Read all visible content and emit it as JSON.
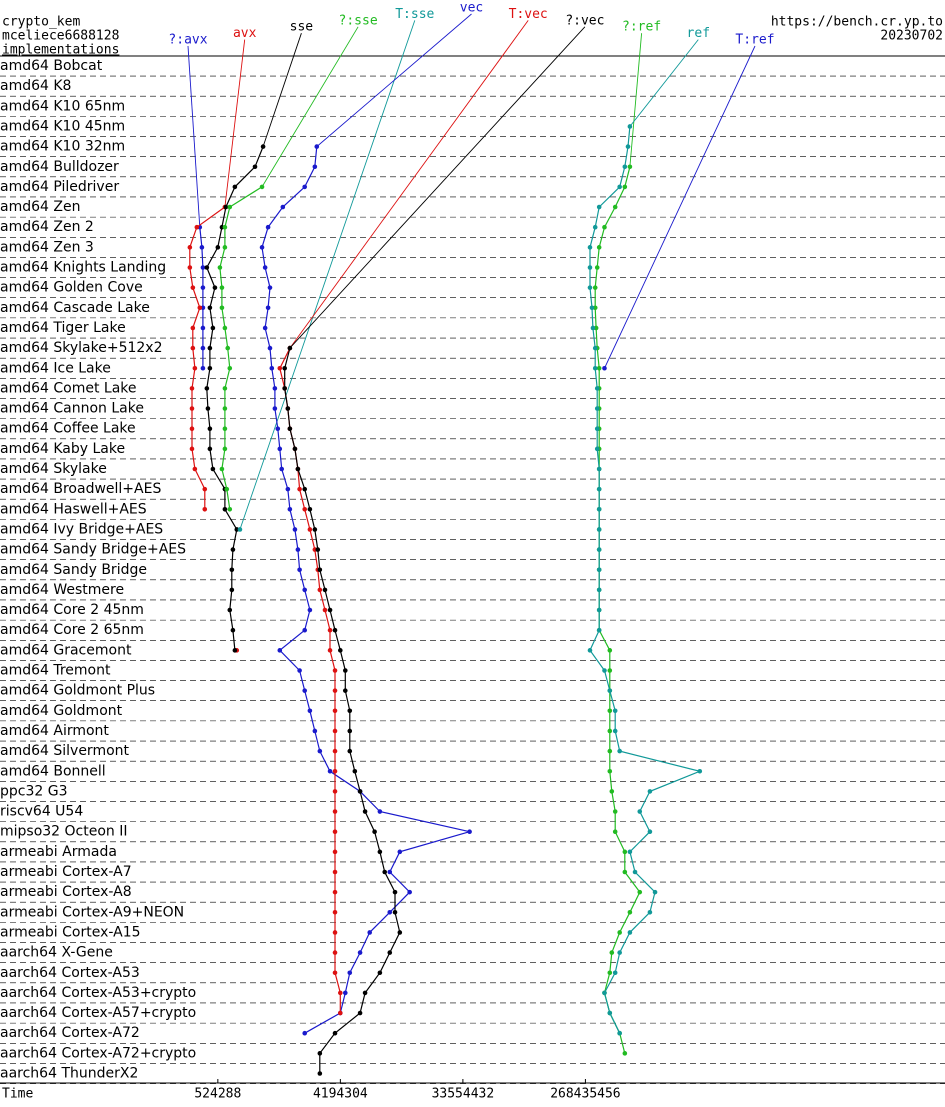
{
  "header": {
    "primitive": "crypto_kem",
    "function": "mceliece6688128",
    "subtitle": "implementations",
    "site": "https://bench.cr.yp.to",
    "date": "20230702"
  },
  "chart_data": {
    "type": "dotline",
    "x_label": "Time",
    "log_x": true,
    "xlim": [
      13000,
      120000000000
    ],
    "xticks": [
      524288,
      4194304,
      33554432,
      268435456
    ],
    "categories": [
      "amd64 Bobcat",
      "amd64 K8",
      "amd64 K10 65nm",
      "amd64 K10 45nm",
      "amd64 K10 32nm",
      "amd64 Bulldozer",
      "amd64 Piledriver",
      "amd64 Zen",
      "amd64 Zen 2",
      "amd64 Zen 3",
      "amd64 Knights Landing",
      "amd64 Golden Cove",
      "amd64 Cascade Lake",
      "amd64 Tiger Lake",
      "amd64 Skylake+512x2",
      "amd64 Ice Lake",
      "amd64 Comet Lake",
      "amd64 Cannon Lake",
      "amd64 Coffee Lake",
      "amd64 Kaby Lake",
      "amd64 Skylake",
      "amd64 Broadwell+AES",
      "amd64 Haswell+AES",
      "amd64 Ivy Bridge+AES",
      "amd64 Sandy Bridge+AES",
      "amd64 Sandy Bridge",
      "amd64 Westmere",
      "amd64 Core 2 45nm",
      "amd64 Core 2 65nm",
      "amd64 Gracemont",
      "amd64 Tremont",
      "amd64 Goldmont Plus",
      "amd64 Goldmont",
      "amd64 Airmont",
      "amd64 Silvermont",
      "amd64 Bonnell",
      "ppc32 G3",
      "riscv64 U54",
      "mipso32 Octeon II",
      "armeabi Armada",
      "armeabi Cortex-A7",
      "armeabi Cortex-A8",
      "armeabi Cortex-A9+NEON",
      "armeabi Cortex-A15",
      "aarch64 X-Gene",
      "aarch64 Cortex-A53",
      "aarch64 Cortex-A53+crypto",
      "aarch64 Cortex-A57+crypto",
      "aarch64 Cortex-A72",
      "aarch64 Cortex-A72+crypto",
      "aarch64 ThunderX2"
    ],
    "series": [
      {
        "name": "?:avx",
        "color": "#1a1acc",
        "values": [
          null,
          null,
          null,
          null,
          null,
          null,
          null,
          null,
          386000,
          400000,
          407000,
          407000,
          407000,
          407000,
          407000,
          407000,
          null,
          null,
          null,
          null,
          null,
          null,
          null,
          null,
          null,
          null,
          null,
          null,
          null,
          null,
          null,
          null,
          null,
          null,
          null,
          null,
          null,
          null,
          null,
          null,
          null,
          null,
          null,
          null,
          null,
          null,
          null,
          null,
          null,
          null,
          null
        ]
      },
      {
        "name": "avx",
        "color": "#dd1111",
        "values": [
          null,
          null,
          null,
          null,
          null,
          null,
          null,
          591000,
          367000,
          326000,
          326000,
          343000,
          386000,
          343000,
          343000,
          355000,
          338000,
          338000,
          338000,
          338000,
          355000,
          420000,
          420000,
          null,
          null,
          null,
          null,
          null,
          null,
          723000,
          null,
          null,
          null,
          null,
          null,
          null,
          null,
          null,
          null,
          null,
          null,
          null,
          null,
          null,
          null,
          null,
          null,
          null,
          null,
          null,
          null
        ]
      },
      {
        "name": "sse",
        "color": "#000000",
        "values": [
          null,
          null,
          null,
          null,
          1130000,
          985000,
          700000,
          601000,
          562000,
          524000,
          435000,
          499000,
          458000,
          482000,
          458000,
          458000,
          435000,
          443000,
          458000,
          458000,
          482000,
          591000,
          591000,
          723000,
          677000,
          665000,
          665000,
          642000,
          677000,
          700000,
          null,
          null,
          null,
          null,
          null,
          null,
          null,
          null,
          null,
          null,
          null,
          null,
          null,
          null,
          null,
          null,
          null,
          null,
          null,
          null,
          null
        ]
      },
      {
        "name": "?:sse",
        "color": "#22bb22",
        "values": [
          null,
          null,
          null,
          null,
          null,
          null,
          1110000,
          642000,
          591000,
          591000,
          543000,
          562000,
          562000,
          591000,
          620000,
          642000,
          591000,
          591000,
          591000,
          591000,
          562000,
          610000,
          642000,
          null,
          null,
          null,
          null,
          null,
          null,
          null,
          null,
          null,
          null,
          null,
          null,
          null,
          null,
          null,
          null,
          null,
          null,
          null,
          null,
          null,
          null,
          null,
          null,
          null,
          null,
          null,
          null
        ]
      },
      {
        "name": "T:sse",
        "color": "#119999",
        "values": [
          null,
          null,
          null,
          null,
          null,
          null,
          null,
          null,
          null,
          null,
          null,
          null,
          null,
          null,
          null,
          null,
          null,
          null,
          null,
          null,
          null,
          null,
          null,
          763000,
          null,
          null,
          null,
          null,
          null,
          null,
          null,
          null,
          null,
          null,
          null,
          null,
          null,
          null,
          null,
          null,
          null,
          null,
          null,
          null,
          null,
          null,
          null,
          null,
          null,
          null,
          null
        ]
      },
      {
        "name": "vec",
        "color": "#1a1acc",
        "values": [
          null,
          null,
          null,
          null,
          2810000,
          2720000,
          2290000,
          1580000,
          1230000,
          1110000,
          1170000,
          1270000,
          1230000,
          1170000,
          1270000,
          1310000,
          1380000,
          1380000,
          1450000,
          1500000,
          1550000,
          1720000,
          1780000,
          1940000,
          2040000,
          2100000,
          2290000,
          2500000,
          2290000,
          1500000,
          2100000,
          2290000,
          2500000,
          2720000,
          2960000,
          3520000,
          5860000,
          8200000,
          37600000,
          11500000,
          9700000,
          13600000,
          9700000,
          6900000,
          5860000,
          4920000,
          4560000,
          4190000,
          2290000,
          null,
          null
        ]
      },
      {
        "name": "T:vec",
        "color": "#dd1111",
        "values": [
          null,
          null,
          null,
          null,
          null,
          null,
          null,
          null,
          null,
          null,
          null,
          null,
          null,
          null,
          1780000,
          1500000,
          1630000,
          1720000,
          1780000,
          1940000,
          2040000,
          2100000,
          2290000,
          2500000,
          2720000,
          2860000,
          2960000,
          3230000,
          3520000,
          3520000,
          3830000,
          3830000,
          3830000,
          3830000,
          3830000,
          3830000,
          3830000,
          3830000,
          3830000,
          3830000,
          3830000,
          3830000,
          3830000,
          3830000,
          3830000,
          3830000,
          4190000,
          4190000,
          null,
          null,
          null
        ]
      },
      {
        "name": "?:vec",
        "color": "#000000",
        "values": [
          null,
          null,
          null,
          null,
          null,
          null,
          null,
          null,
          null,
          null,
          null,
          null,
          null,
          null,
          1780000,
          1630000,
          1630000,
          1720000,
          1780000,
          1940000,
          2040000,
          2290000,
          2500000,
          2720000,
          2860000,
          2960000,
          3230000,
          3520000,
          3830000,
          4190000,
          4560000,
          4560000,
          4920000,
          4920000,
          4920000,
          5360000,
          5860000,
          6380000,
          7500000,
          8200000,
          8900000,
          10600000,
          10600000,
          11500000,
          9700000,
          8200000,
          6380000,
          5860000,
          3830000,
          2960000,
          2960000
        ]
      },
      {
        "name": "?:ref",
        "color": "#22bb22",
        "values": [
          null,
          null,
          null,
          null,
          null,
          571000000,
          524000000,
          445000000,
          371000000,
          339000000,
          328000000,
          317000000,
          317000000,
          322000000,
          328000000,
          339000000,
          339000000,
          339000000,
          339000000,
          339000000,
          339000000,
          339000000,
          339000000,
          339000000,
          339000000,
          339000000,
          339000000,
          339000000,
          339000000,
          406000000,
          406000000,
          406000000,
          406000000,
          406000000,
          406000000,
          406000000,
          420000000,
          445000000,
          445000000,
          524000000,
          524000000,
          675000000,
          571000000,
          480000000,
          420000000,
          406000000,
          371000000,
          406000000,
          480000000,
          524000000,
          null
        ]
      },
      {
        "name": "ref",
        "color": "#119999",
        "values": [
          null,
          null,
          null,
          571000000,
          553000000,
          524000000,
          480000000,
          339000000,
          317000000,
          290000000,
          290000000,
          290000000,
          300000000,
          305000000,
          317000000,
          317000000,
          328000000,
          328000000,
          328000000,
          328000000,
          339000000,
          339000000,
          339000000,
          339000000,
          339000000,
          339000000,
          339000000,
          339000000,
          339000000,
          290000000,
          371000000,
          406000000,
          445000000,
          445000000,
          480000000,
          1870000000,
          802000000,
          675000000,
          802000000,
          571000000,
          623000000,
          875000000,
          802000000,
          571000000,
          480000000,
          445000000,
          371000000,
          406000000,
          480000000,
          null,
          null
        ]
      },
      {
        "name": "T:ref",
        "color": "#1a1acc",
        "values": [
          null,
          null,
          null,
          null,
          null,
          null,
          null,
          null,
          null,
          null,
          null,
          null,
          null,
          null,
          null,
          371000000,
          null,
          null,
          null,
          null,
          null,
          null,
          null,
          null,
          null,
          null,
          null,
          null,
          null,
          null,
          null,
          null,
          null,
          null,
          null,
          null,
          null,
          null,
          null,
          null,
          null,
          null,
          null,
          null,
          null,
          null,
          null,
          null,
          null,
          null,
          null
        ]
      }
    ]
  }
}
